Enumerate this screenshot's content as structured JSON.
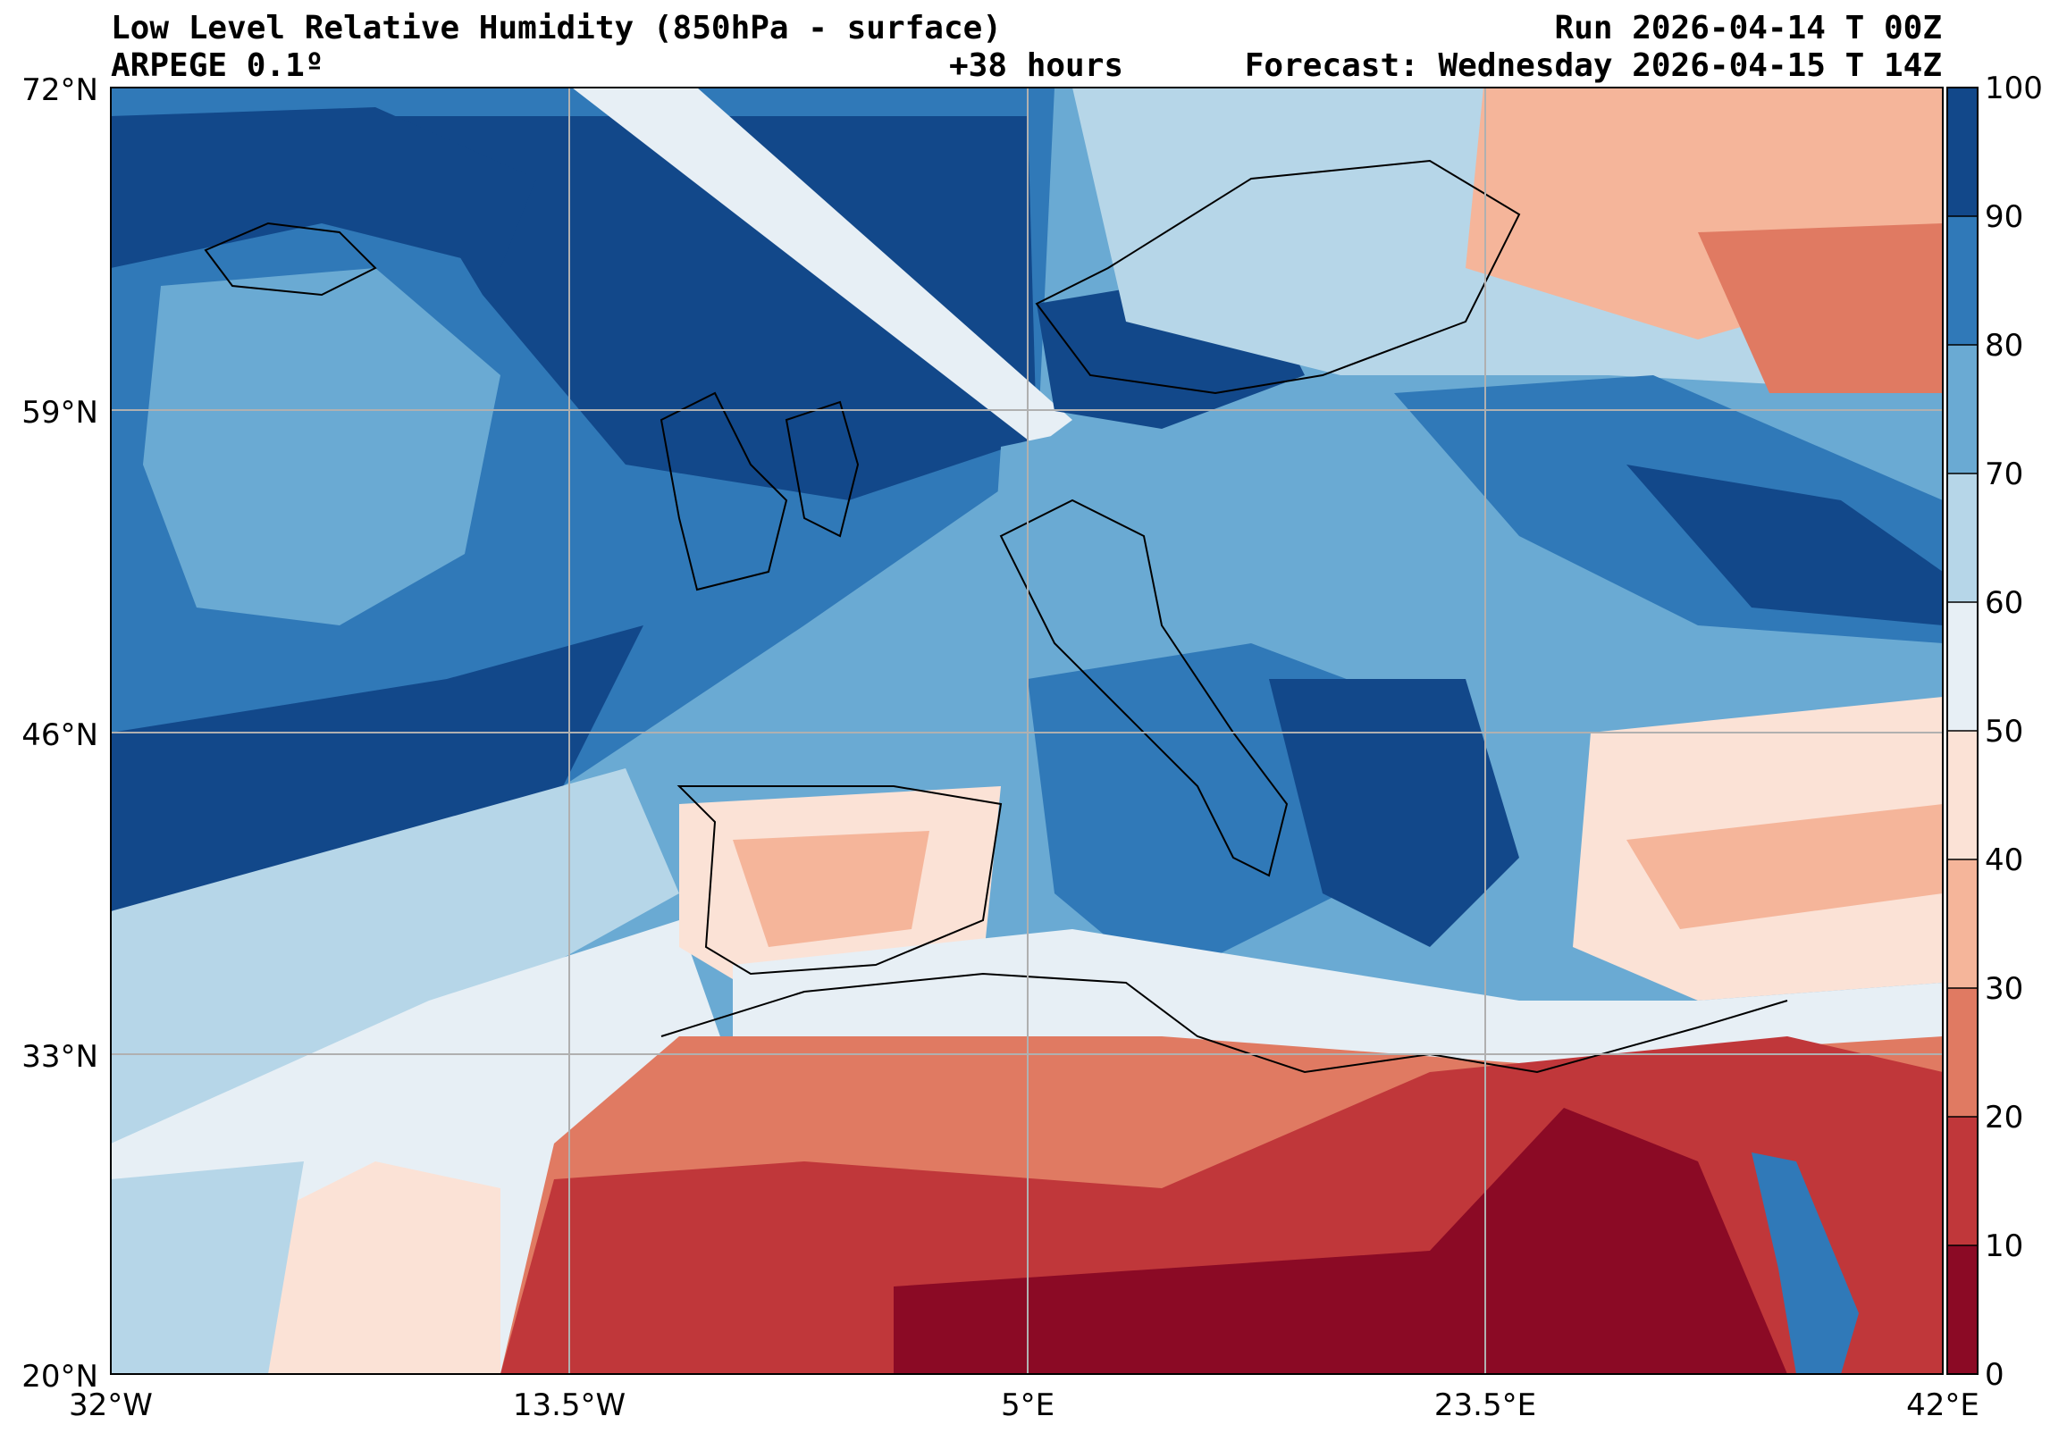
{
  "header": {
    "title": "Low Level Relative Humidity (850hPa - surface)",
    "model": "ARPEGE 0.1º",
    "lead": "+38 hours",
    "run": "Run 2026-04-14 T 00Z",
    "forecast": "Forecast: Wednesday 2026-04-15 T 14Z"
  },
  "map": {
    "lat_labels": [
      "72°N",
      "59°N",
      "46°N",
      "33°N",
      "20°N"
    ],
    "lon_labels": [
      "32°W",
      "13.5°W",
      "5°E",
      "23.5°E",
      "42°E"
    ]
  },
  "colorbar": {
    "ticks": [
      "0",
      "10",
      "20",
      "30",
      "40",
      "50",
      "60",
      "70",
      "80",
      "90",
      "100"
    ],
    "colors": [
      "#8b0a25",
      "#c0373a",
      "#e07a62",
      "#f5b59a",
      "#fbe2d6",
      "#e7eff5",
      "#b6d6e8",
      "#6aaad3",
      "#3079b8",
      "#12488a"
    ]
  }
}
